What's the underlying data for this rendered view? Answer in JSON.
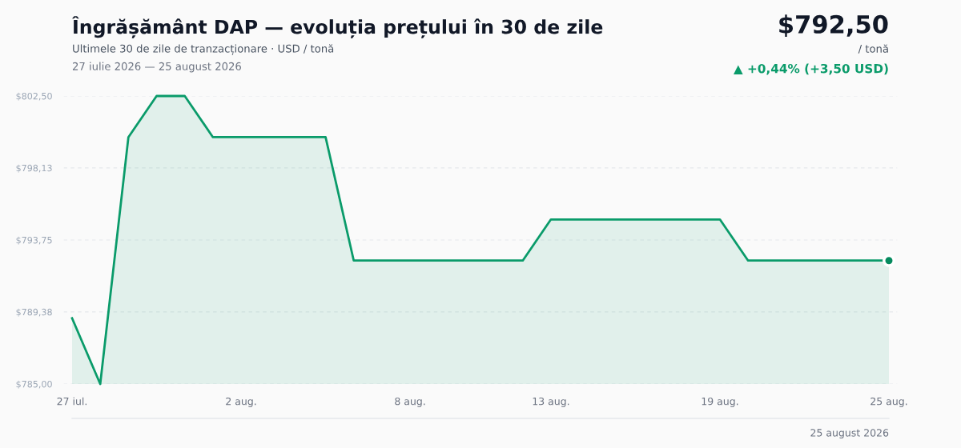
{
  "chart_data": {
    "type": "area",
    "title": "Îngrășământ DAP — evoluția prețului în 30 de zile",
    "subtitle": "Ultimele 30 de zile de tranzacționare · USD / tonă",
    "annotations": [
      "27 iulie 2026 — 25 august 2026",
      "$792,50",
      "/ tonă",
      "▲ +0,44% (+3,50 USD)",
      "25 august 2026"
    ],
    "categories": [
      "27 iul.",
      null,
      null,
      null,
      null,
      null,
      "2 aug.",
      null,
      null,
      null,
      null,
      null,
      "8 aug.",
      null,
      null,
      null,
      null,
      "13 aug.",
      null,
      null,
      null,
      null,
      null,
      "19 aug.",
      null,
      null,
      null,
      null,
      null,
      "25 aug."
    ],
    "series": [
      {
        "color": "#0a9b6a",
        "values": [
          789.0,
          785.0,
          800.0,
          802.5,
          802.5,
          800.0,
          800.0,
          800.0,
          800.0,
          800.0,
          792.5,
          792.5,
          792.5,
          792.5,
          792.5,
          792.5,
          792.5,
          795.0,
          795.0,
          795.0,
          795.0,
          795.0,
          795.0,
          795.0,
          792.5,
          792.5,
          792.5,
          792.5,
          792.5,
          792.5
        ]
      },
      {
        "type": "scatter",
        "color": "#058a5e",
        "marker": "circle",
        "x": [
          "25 aug."
        ],
        "values": [
          792.5
        ]
      }
    ],
    "ylim": [
      785.0,
      802.5
    ],
    "yticks": [
      {
        "value": 785.0,
        "label": "$785,00"
      },
      {
        "value": 789.38,
        "label": "$789,38"
      },
      {
        "value": 793.75,
        "label": "$793,75"
      },
      {
        "value": 798.13,
        "label": "$798,13"
      },
      {
        "value": 802.5,
        "label": "$802,50"
      }
    ],
    "grid": "y",
    "legend": false
  }
}
